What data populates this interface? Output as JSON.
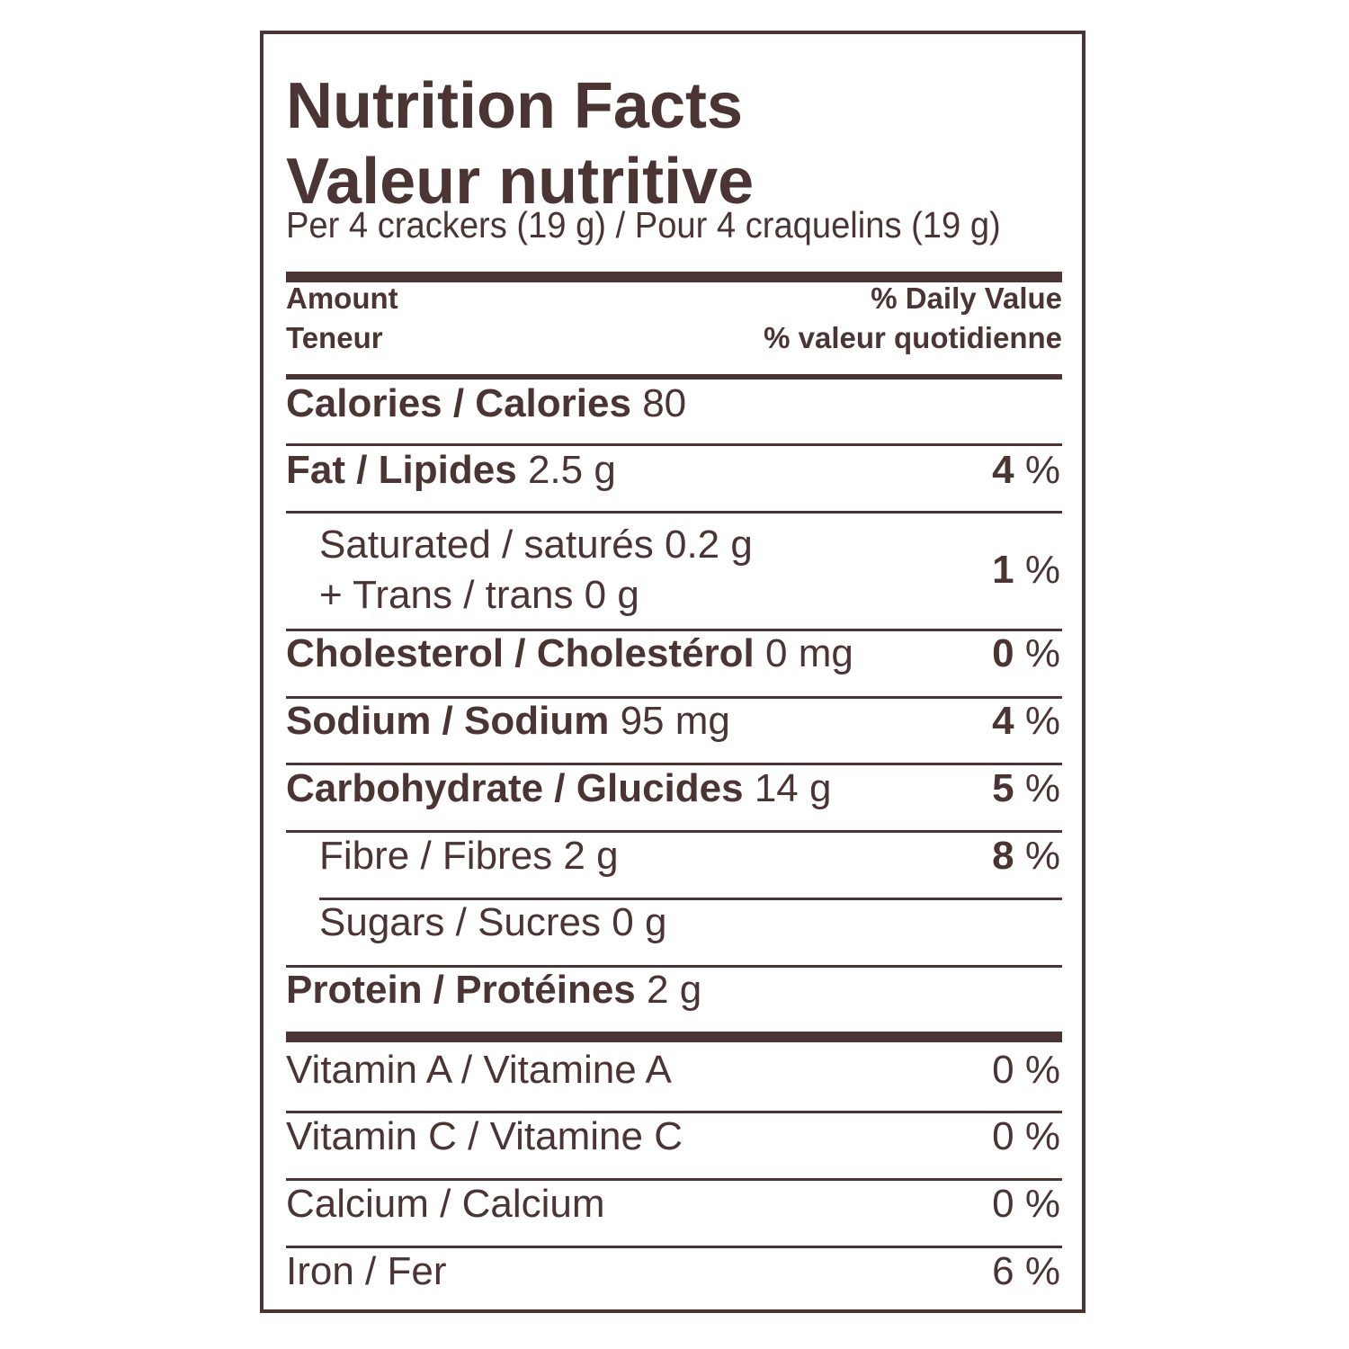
{
  "title_en": "Nutrition Facts",
  "title_fr": "Valeur nutritive",
  "serving": "Per 4 crackers (19 g) / Pour 4 craquelins (19 g)",
  "header": {
    "amount_en": "Amount",
    "amount_fr": "Teneur",
    "dv_en": "% Daily Value",
    "dv_fr": "% valeur quotidienne"
  },
  "calories": {
    "label": "Calories / Calories",
    "value": "80"
  },
  "fat": {
    "label": "Fat / Lipides",
    "value": "2.5 g",
    "pct_num": "4",
    "pct_sign": "%"
  },
  "saturated": {
    "line1": "Saturated / saturés 0.2 g",
    "line2": "+ Trans / trans 0 g",
    "pct_num": "1",
    "pct_sign": "%"
  },
  "cholesterol": {
    "label": "Cholesterol / Cholestérol",
    "value": "0 mg",
    "pct_num": "0",
    "pct_sign": "%"
  },
  "sodium": {
    "label": "Sodium / Sodium",
    "value": "95 mg",
    "pct_num": "4",
    "pct_sign": "%"
  },
  "carbohydrate": {
    "label": "Carbohydrate / Glucides",
    "value": "14 g",
    "pct_num": "5",
    "pct_sign": "%"
  },
  "fibre": {
    "label": "Fibre / Fibres 2 g",
    "pct_num": "8",
    "pct_sign": "%"
  },
  "sugars": {
    "label": "Sugars / Sucres 0 g"
  },
  "protein": {
    "label": "Protein / Protéines",
    "value": "2 g"
  },
  "vitamins": [
    {
      "label": "Vitamin A / Vitamine A",
      "pct": "0 %"
    },
    {
      "label": "Vitamin C / Vitamine C",
      "pct": "0 %"
    },
    {
      "label": "Calcium / Calcium",
      "pct": "0 %"
    },
    {
      "label": "Iron / Fer",
      "pct": "6 %"
    }
  ]
}
